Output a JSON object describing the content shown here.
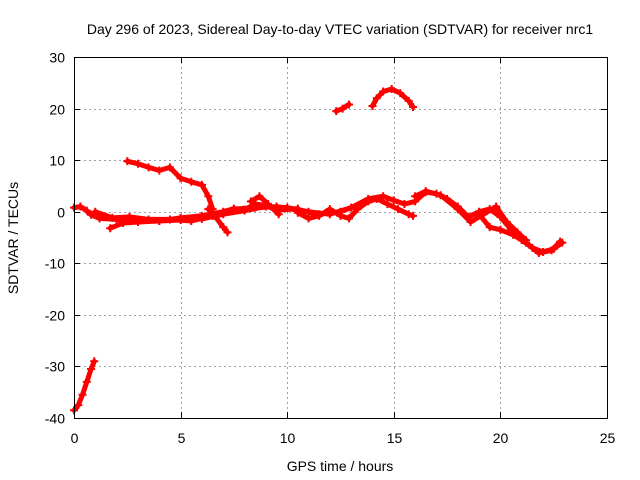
{
  "chart_data": {
    "type": "scatter",
    "title": "Day 296 of 2023, Sidereal Day-to-day VTEC variation (SDTVAR) for receiver nrc1",
    "xlabel": "GPS time / hours",
    "ylabel": "SDTVAR / TECUs",
    "xlim": [
      0,
      25
    ],
    "ylim": [
      -40,
      30
    ],
    "xticks": [
      0,
      5,
      10,
      15,
      20,
      25
    ],
    "yticks": [
      -40,
      -30,
      -20,
      -10,
      0,
      10,
      20,
      30
    ],
    "grid": true,
    "marker": "+",
    "series": [
      {
        "name": "SDTVAR",
        "color": "#ff0000",
        "segments": [
          [
            [
              0.0,
              -38.5
            ],
            [
              0.2,
              -37.5
            ],
            [
              0.4,
              -35.5
            ],
            [
              0.6,
              -33
            ],
            [
              0.8,
              -30.5
            ],
            [
              0.95,
              -29
            ]
          ],
          [
            [
              0.0,
              0.8
            ],
            [
              0.3,
              1.0
            ],
            [
              0.6,
              0.2
            ],
            [
              0.8,
              -0.6
            ],
            [
              1.2,
              -1.3
            ],
            [
              2.0,
              -1.5
            ],
            [
              3.0,
              -1.8
            ],
            [
              4.0,
              -1.8
            ],
            [
              5.0,
              -1.6
            ],
            [
              6.0,
              -1.4
            ],
            [
              7.0,
              -0.5
            ],
            [
              8.0,
              0.2
            ],
            [
              9.0,
              1.0
            ],
            [
              10.0,
              0.8
            ],
            [
              11.0,
              0.0
            ],
            [
              12.0,
              -0.5
            ],
            [
              13.0,
              0.8
            ],
            [
              13.8,
              2.5
            ],
            [
              14.5,
              3.0
            ],
            [
              15.0,
              2.2
            ],
            [
              15.5,
              1.5
            ],
            [
              16.0,
              2.0
            ],
            [
              16.5,
              3.8
            ],
            [
              17.0,
              3.5
            ],
            [
              17.5,
              2.5
            ],
            [
              18.0,
              1.0
            ],
            [
              18.5,
              -1.0
            ],
            [
              19.0,
              0.0
            ],
            [
              19.5,
              0.5
            ],
            [
              20.0,
              -1.0
            ],
            [
              20.5,
              -3.5
            ],
            [
              21.0,
              -5.5
            ],
            [
              21.5,
              -7.0
            ],
            [
              22.0,
              -7.8
            ],
            [
              22.5,
              -7.2
            ],
            [
              22.9,
              -6.0
            ]
          ],
          [
            [
              1.0,
              0.0
            ],
            [
              1.8,
              -1.2
            ],
            [
              2.6,
              -1.0
            ],
            [
              3.5,
              -1.5
            ],
            [
              4.5,
              -1.5
            ],
            [
              5.5,
              -1.8
            ],
            [
              6.5,
              -0.8
            ],
            [
              7.5,
              0.5
            ],
            [
              8.5,
              0.8
            ],
            [
              9.5,
              1.0
            ],
            [
              10.5,
              0.3
            ],
            [
              11.5,
              -0.5
            ],
            [
              12.5,
              0.0
            ],
            [
              13.5,
              1.5
            ],
            [
              14.2,
              2.5
            ],
            [
              14.7,
              1.5
            ],
            [
              15.2,
              0.5
            ],
            [
              15.7,
              -0.5
            ],
            [
              15.9,
              -0.8
            ]
          ],
          [
            [
              1.7,
              -3.2
            ],
            [
              2.3,
              -2.2
            ],
            [
              3.0,
              -2.0
            ],
            [
              4.0,
              -1.8
            ],
            [
              5.0,
              -1.2
            ],
            [
              6.0,
              -0.8
            ],
            [
              7.0,
              0.0
            ],
            [
              7.5,
              0.6
            ],
            [
              8.0,
              0.4
            ],
            [
              8.5,
              1.5
            ],
            [
              9.0,
              1.2
            ],
            [
              9.5,
              0.3
            ],
            [
              10.5,
              0.6
            ]
          ],
          [
            [
              6.3,
              0.5
            ],
            [
              6.6,
              -0.8
            ],
            [
              7.0,
              -3.0
            ],
            [
              7.2,
              -4.0
            ]
          ],
          [
            [
              8.3,
              2.0
            ],
            [
              8.7,
              3.0
            ],
            [
              9.1,
              1.5
            ],
            [
              9.6,
              -0.5
            ]
          ],
          [
            [
              10.5,
              -0.2
            ],
            [
              11.0,
              -1.3
            ],
            [
              11.5,
              -0.8
            ],
            [
              12.0,
              0.5
            ],
            [
              12.5,
              -0.8
            ],
            [
              12.9,
              -1.3
            ],
            [
              13.3,
              0.5
            ],
            [
              13.8,
              2.0
            ]
          ],
          [
            [
              16.0,
              3.0
            ],
            [
              16.5,
              4.0
            ],
            [
              17.2,
              3.2
            ],
            [
              18.0,
              0.5
            ],
            [
              18.6,
              -2.0
            ],
            [
              19.2,
              -0.5
            ],
            [
              19.8,
              1.0
            ],
            [
              20.3,
              -2.0
            ],
            [
              20.8,
              -4.0
            ],
            [
              21.2,
              -5.5
            ]
          ],
          [
            [
              19.0,
              -0.5
            ],
            [
              19.5,
              -3.0
            ],
            [
              20.0,
              -3.5
            ],
            [
              20.6,
              -4.5
            ],
            [
              21.2,
              -6.0
            ],
            [
              21.8,
              -8.0
            ],
            [
              22.4,
              -7.5
            ],
            [
              22.8,
              -5.8
            ]
          ],
          [
            [
              2.5,
              9.8
            ],
            [
              3.0,
              9.3
            ],
            [
              3.5,
              8.6
            ],
            [
              4.0,
              8.0
            ],
            [
              4.5,
              8.6
            ],
            [
              5.0,
              6.5
            ],
            [
              5.5,
              5.8
            ],
            [
              6.0,
              5.2
            ],
            [
              6.3,
              3.0
            ],
            [
              6.5,
              0.5
            ]
          ],
          [
            [
              12.3,
              19.5
            ],
            [
              12.6,
              20.0
            ],
            [
              12.9,
              20.8
            ]
          ],
          [
            [
              14.0,
              20.5
            ],
            [
              14.2,
              22.0
            ],
            [
              14.5,
              23.3
            ],
            [
              14.9,
              23.8
            ],
            [
              15.3,
              23.0
            ],
            [
              15.7,
              21.5
            ],
            [
              15.9,
              20.3
            ]
          ]
        ]
      }
    ]
  }
}
